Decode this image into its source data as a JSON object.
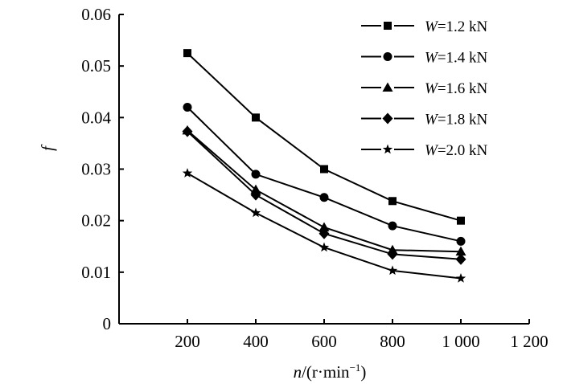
{
  "chart_data": {
    "type": "line",
    "title": "",
    "xlabel_var": "n",
    "xlabel_unit": "/(r·min",
    "xlabel_sup": "−1",
    "xlabel_close": ")",
    "ylabel": "f",
    "xlim": [
      0,
      1200
    ],
    "ylim": [
      0,
      0.06
    ],
    "x_ticks": [
      200,
      400,
      600,
      800,
      1000,
      1200
    ],
    "x_tick_labels": [
      "200",
      "400",
      "600",
      "800",
      "1 000",
      "1 200"
    ],
    "y_ticks": [
      0,
      0.01,
      0.02,
      0.03,
      0.04,
      0.05,
      0.06
    ],
    "y_tick_labels": [
      "0",
      "0.01",
      "0.02",
      "0.03",
      "0.04",
      "0.05",
      "0.06"
    ],
    "x": [
      200,
      400,
      600,
      800,
      1000
    ],
    "grid": false,
    "legend_position": "top-right",
    "series": [
      {
        "name": "W=1.2 kN",
        "legend_var": "W",
        "legend_rest": "=1.2 kN",
        "marker": "square",
        "values": [
          0.0525,
          0.04,
          0.03,
          0.0238,
          0.02
        ]
      },
      {
        "name": "W=1.4 kN",
        "legend_var": "W",
        "legend_rest": "=1.4 kN",
        "marker": "circle",
        "values": [
          0.042,
          0.029,
          0.0245,
          0.019,
          0.016
        ]
      },
      {
        "name": "W=1.6 kN",
        "legend_var": "W",
        "legend_rest": "=1.6 kN",
        "marker": "triangle",
        "values": [
          0.0375,
          0.026,
          0.0187,
          0.0143,
          0.014
        ]
      },
      {
        "name": "W=1.8 kN",
        "legend_var": "W",
        "legend_rest": "=1.8 kN",
        "marker": "diamond",
        "values": [
          0.0373,
          0.025,
          0.0175,
          0.0135,
          0.0125
        ]
      },
      {
        "name": "W=2.0 kN",
        "legend_var": "W",
        "legend_rest": "=2.0 kN",
        "marker": "star",
        "values": [
          0.0292,
          0.0215,
          0.0148,
          0.0103,
          0.0088
        ]
      }
    ]
  }
}
